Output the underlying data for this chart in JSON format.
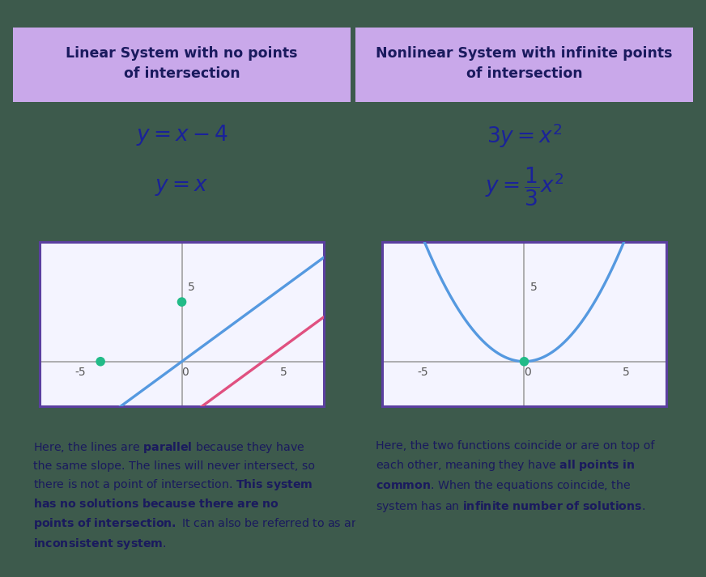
{
  "bg_color": "#3d5a4c",
  "header_bg": "#c9a8ea",
  "header_text_color": "#1a1a5e",
  "divider_color": "#6a3fa0",
  "graph_border_color": "#5b3fa0",
  "graph_bg": "#f4f4ff",
  "grid_color": "#cccccc",
  "axis_line_color": "#999999",
  "tick_color": "#555555",
  "blue_line_color": "#5599e0",
  "pink_line_color": "#e05080",
  "green_dot_color": "#22bb88",
  "equation_color": "#1a2299",
  "body_text_color": "#1a1a5e",
  "title_left": "Linear System with no points\nof intersection",
  "title_right": "Nonlinear System with infinite points\nof intersection",
  "figsize": [
    8.72,
    7.13
  ],
  "dpi": 100,
  "xlim": [
    -7,
    7
  ],
  "ylim": [
    -4,
    8
  ],
  "xticks": [
    -5,
    0,
    5
  ],
  "ytick": 5,
  "graph_xlim": [
    -7,
    7
  ],
  "graph_ylim": [
    -3,
    8
  ]
}
